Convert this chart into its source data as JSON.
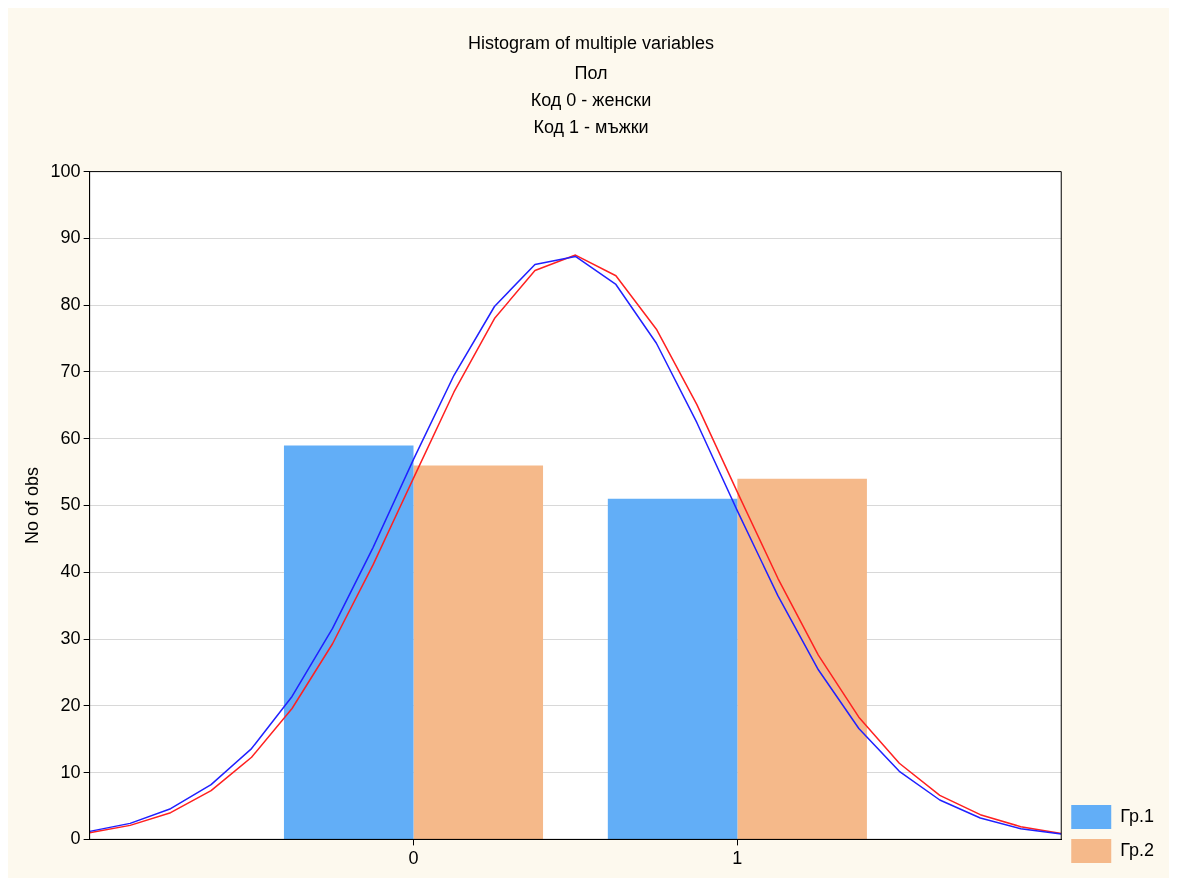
{
  "chart_data": {
    "type": "bar",
    "title": "Histogram of multiple variables",
    "subtitle": "Пол\nКод 0 - женски\nКод 1 - мъжки",
    "ylabel": "No of obs",
    "xlim": [
      -1,
      2
    ],
    "xticks": [
      0,
      1
    ],
    "ylim": [
      0,
      100
    ],
    "yticks": [
      0,
      10,
      20,
      30,
      40,
      50,
      60,
      70,
      80,
      90,
      100
    ],
    "grid": "y",
    "legend": "bottom right",
    "series": [
      {
        "name": "Гр.1",
        "color": "#62aef7",
        "x": [
          0,
          1
        ],
        "values": [
          59,
          51
        ]
      },
      {
        "name": "Гр.2",
        "color": "#f5b98a",
        "x": [
          0,
          1
        ],
        "values": [
          56,
          54
        ]
      },
      {
        "type": "line",
        "color": "#2020ff",
        "x": [
          -1,
          -0.875,
          -0.75,
          -0.625,
          -0.5,
          -0.375,
          -0.25,
          -0.125,
          0,
          0.125,
          0.25,
          0.375,
          0.5,
          0.625,
          0.75,
          0.875,
          1,
          1.125,
          1.25,
          1.375,
          1.5,
          1.625,
          1.75,
          1.875,
          2
        ],
        "values": [
          1.2,
          2.4,
          4.6,
          8.2,
          13.6,
          21.4,
          31.6,
          43.7,
          56.9,
          69.5,
          79.8,
          86.1,
          87.3,
          83.1,
          74.3,
          62.4,
          49.2,
          36.5,
          25.4,
          16.6,
          10.2,
          5.9,
          3.2,
          1.6,
          0.8
        ]
      },
      {
        "type": "line",
        "color": "#ff2020",
        "x": [
          -1,
          -0.875,
          -0.75,
          -0.625,
          -0.5,
          -0.375,
          -0.25,
          -0.125,
          0,
          0.125,
          0.25,
          0.375,
          0.5,
          0.625,
          0.75,
          0.875,
          1,
          1.125,
          1.25,
          1.375,
          1.5,
          1.625,
          1.75,
          1.875,
          2
        ],
        "values": [
          1.0,
          2.1,
          4.0,
          7.3,
          12.3,
          19.6,
          29.3,
          41.1,
          54.1,
          67.0,
          78.0,
          85.2,
          87.5,
          84.4,
          76.4,
          65.1,
          52.0,
          39.1,
          27.6,
          18.3,
          11.4,
          6.6,
          3.7,
          1.9,
          0.9
        ]
      }
    ]
  }
}
